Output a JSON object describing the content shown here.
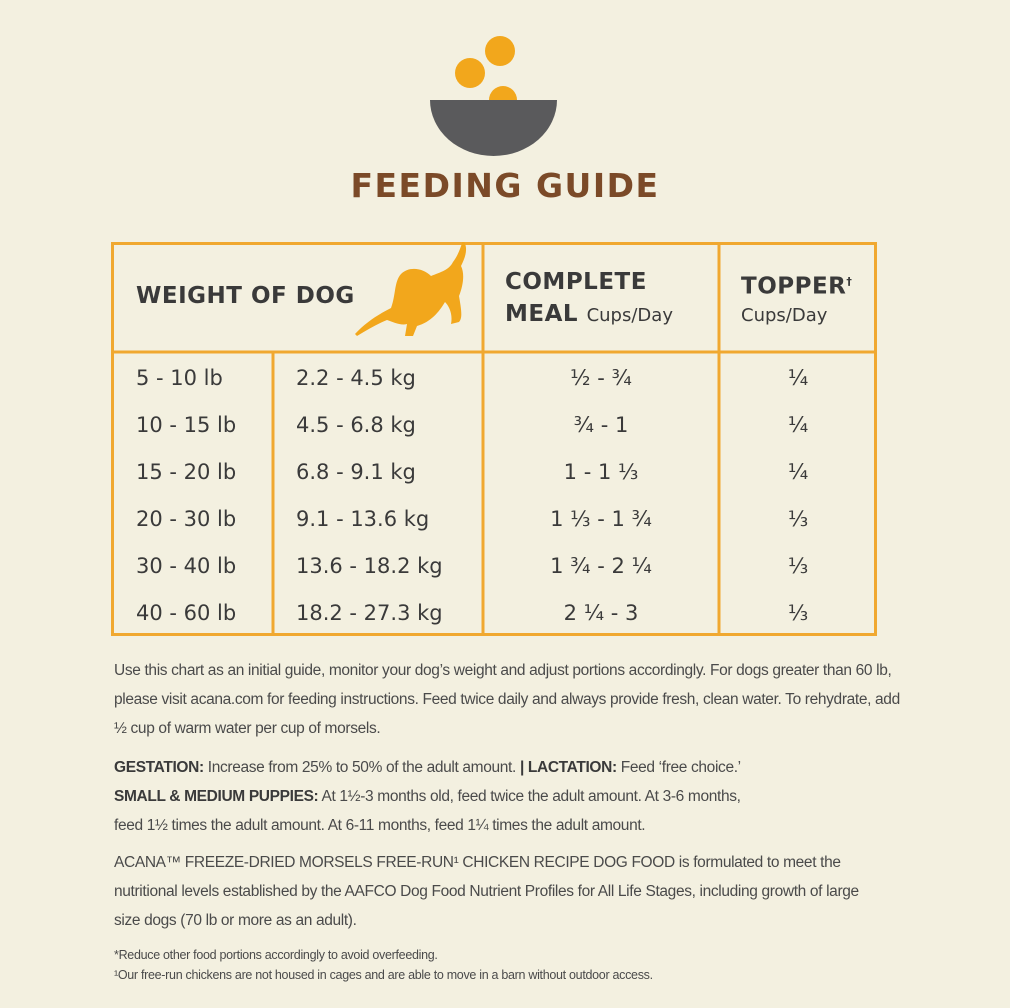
{
  "header": {
    "title": "FEEDING GUIDE"
  },
  "table": {
    "columns": {
      "weight": "WEIGHT OF DOG",
      "meal_line1": "COMPLETE",
      "meal_line2": "MEAL",
      "meal_unit": "Cups/Day",
      "topper": "TOPPER",
      "topper_mark": "†",
      "topper_unit": "Cups/Day"
    },
    "rows": [
      [
        "5 - 10 lb",
        "2.2 - 4.5 kg",
        "½ - ¾",
        "¼"
      ],
      [
        "10 - 15 lb",
        "4.5 - 6.8 kg",
        "¾ -  1",
        "¼"
      ],
      [
        "15 - 20 lb",
        "6.8 - 9.1 kg",
        "1 - 1 ⅓",
        "¼"
      ],
      [
        "20 - 30 lb",
        "9.1 - 13.6 kg",
        "1 ⅓ - 1 ¾",
        "⅓"
      ],
      [
        "30 - 40 lb",
        "13.6 - 18.2 kg",
        "1 ¾ - 2 ¼",
        "⅓"
      ],
      [
        "40 - 60 lb",
        "18.2 - 27.3 kg",
        "2 ¼ - 3",
        "⅓"
      ]
    ]
  },
  "notes": {
    "intro": "Use this chart as an initial guide, monitor your dog’s weight and adjust portions accordingly. For dogs greater than 60 lb, please visit acana.com for feeding instructions. Feed twice daily and always provide fresh, clean water. To rehydrate, add ½ cup of warm water per cup of morsels.",
    "gestation_label": "GESTATION:",
    "gestation_text": "Increase from 25% to 50% of the adult amount.",
    "lactation_label": "| LACTATION:",
    "lactation_text": "Feed ‘free choice.’",
    "puppies_label": "SMALL & MEDIUM PUPPIES:",
    "puppies_text": "At 1½-3 months old, feed twice the adult amount. At 3-6 months, feed 1½ times the adult amount. At 6-11 months, feed 1¼ times the adult amount.",
    "aafco": "ACANA™ FREEZE-DRIED MORSELS FREE-RUN¹ CHICKEN RECIPE DOG FOOD is formulated to meet the nutritional levels established by the AAFCO Dog Food Nutrient Profiles for All Life Stages, including growth of large size dogs (70 lb or more as an adult).",
    "footnotes": [
      "*Reduce other food portions accordingly to avoid overfeeding.",
      "¹Our free-run chickens are not housed in cages and are able to move in a barn without outdoor access."
    ]
  }
}
